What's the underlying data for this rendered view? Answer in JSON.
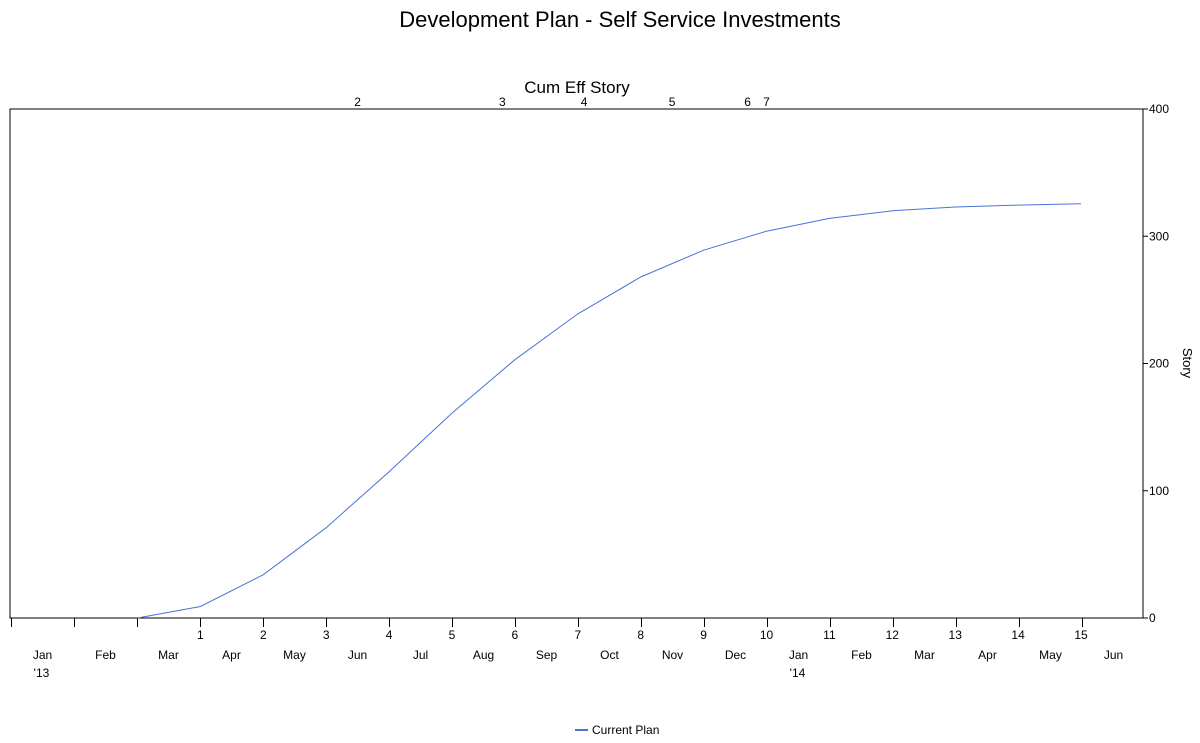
{
  "chart_data": {
    "type": "line",
    "title": "Development Plan - Self Service Investments",
    "subtitle": "Cum Eff Story",
    "ylabel": "Story",
    "ylim": [
      0,
      400
    ],
    "y_ticks": [
      0,
      100,
      200,
      300,
      400
    ],
    "x_ticks": [
      "1",
      "2",
      "3",
      "4",
      "5",
      "6",
      "7",
      "8",
      "9",
      "10",
      "11",
      "12",
      "13",
      "14",
      "15"
    ],
    "months": [
      {
        "label": "Jan",
        "year": "'13"
      },
      {
        "label": "Feb"
      },
      {
        "label": "Mar"
      },
      {
        "label": "Apr"
      },
      {
        "label": "May"
      },
      {
        "label": "Jun"
      },
      {
        "label": "Jul"
      },
      {
        "label": "Aug"
      },
      {
        "label": "Sep"
      },
      {
        "label": "Oct"
      },
      {
        "label": "Nov"
      },
      {
        "label": "Dec"
      },
      {
        "label": "Jan",
        "year": "'14"
      },
      {
        "label": "Feb"
      },
      {
        "label": "Mar"
      },
      {
        "label": "Apr"
      },
      {
        "label": "May"
      },
      {
        "label": "Jun"
      }
    ],
    "milestones": [
      {
        "label": "2",
        "x": 3.5
      },
      {
        "label": "3",
        "x": 5.8
      },
      {
        "label": "4",
        "x": 7.1
      },
      {
        "label": "5",
        "x": 8.5
      },
      {
        "label": "6",
        "x": 9.7
      },
      {
        "label": "7",
        "x": 10.0
      }
    ],
    "series": [
      {
        "name": "Current Plan",
        "color": "#4a72d8",
        "x": [
          0,
          1,
          2,
          3,
          4,
          5,
          6,
          7,
          8,
          9,
          10,
          11,
          12,
          13,
          14,
          15
        ],
        "y": [
          0,
          9,
          34,
          71,
          115,
          161,
          203,
          239,
          268,
          289,
          304,
          314,
          320,
          323,
          324.5,
          325.5
        ]
      }
    ],
    "legend": {
      "position": "bottom-center"
    },
    "grid": false
  }
}
